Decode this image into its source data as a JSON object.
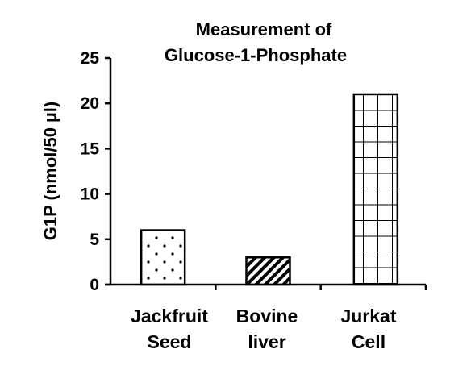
{
  "chart_data": {
    "type": "bar",
    "title": [
      "Measurement of",
      "Glucose-1-Phosphate"
    ],
    "ylabel": "G1P (nmol/50 µl)",
    "xlabel": "",
    "ylim": [
      0,
      25
    ],
    "yticks": [
      0,
      5,
      10,
      15,
      20,
      25
    ],
    "grid": false,
    "legend": "none",
    "categories": [
      [
        "Jackfruit",
        "Seed"
      ],
      [
        "Bovine",
        "liver"
      ],
      [
        "Jurkat",
        "Cell"
      ]
    ],
    "values": [
      6,
      3,
      21
    ],
    "patterns": [
      "dotted",
      "diagonal-stripes",
      "grid"
    ],
    "colors": {
      "bar_fill": "#ffffff",
      "bar_stroke": "#000000",
      "axis": "#000000"
    }
  }
}
